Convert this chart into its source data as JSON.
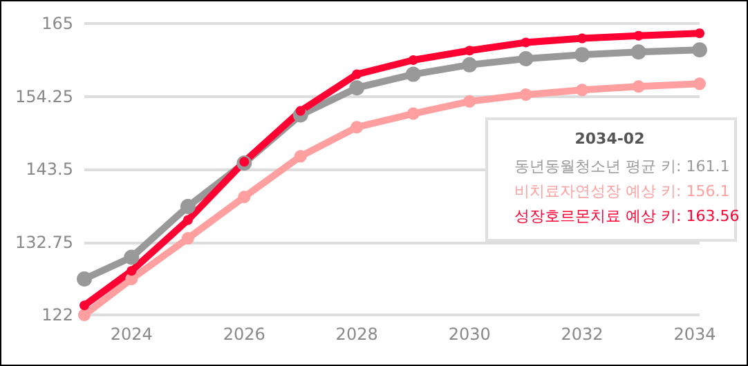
{
  "chart_data": {
    "type": "line",
    "x": [
      "2023-03",
      "2024-01",
      "2025-01",
      "2026-01",
      "2027-01",
      "2028-01",
      "2029-01",
      "2030-01",
      "2031-01",
      "2032-01",
      "2033-01",
      "2034-02"
    ],
    "series": [
      {
        "name": "동년동월청소년 평균 키",
        "color": "#999999",
        "values": [
          127.3,
          130.5,
          138,
          144.4,
          151.5,
          155.5,
          157.5,
          158.9,
          159.8,
          160.4,
          160.8,
          161.1
        ]
      },
      {
        "name": "비치료자연성장 예상 키",
        "color": "#ff9f9f",
        "values": [
          122,
          127.3,
          133.3,
          139.4,
          145.4,
          149.7,
          151.7,
          153.5,
          154.5,
          155.2,
          155.7,
          156.1
        ]
      },
      {
        "name": "성장호르몬치료 예상 키",
        "color": "#ff0033",
        "values": [
          123.4,
          128.5,
          136,
          144.6,
          152.1,
          157.5,
          159.6,
          161,
          162.2,
          162.8,
          163.2,
          163.56
        ]
      }
    ],
    "xlim": [
      "2023-03",
      "2034-02"
    ],
    "xticks": [
      "2024",
      "2026",
      "2028",
      "2030",
      "2032",
      "2034"
    ],
    "ylim": [
      122,
      165
    ],
    "yticks": [
      122,
      132.75,
      143.5,
      154.25,
      165
    ],
    "grid": "y",
    "marker": "circle",
    "legend": false,
    "annotations": [
      "2034-02",
      ": 161.1",
      ": 156.1",
      ": 163.56"
    ]
  }
}
